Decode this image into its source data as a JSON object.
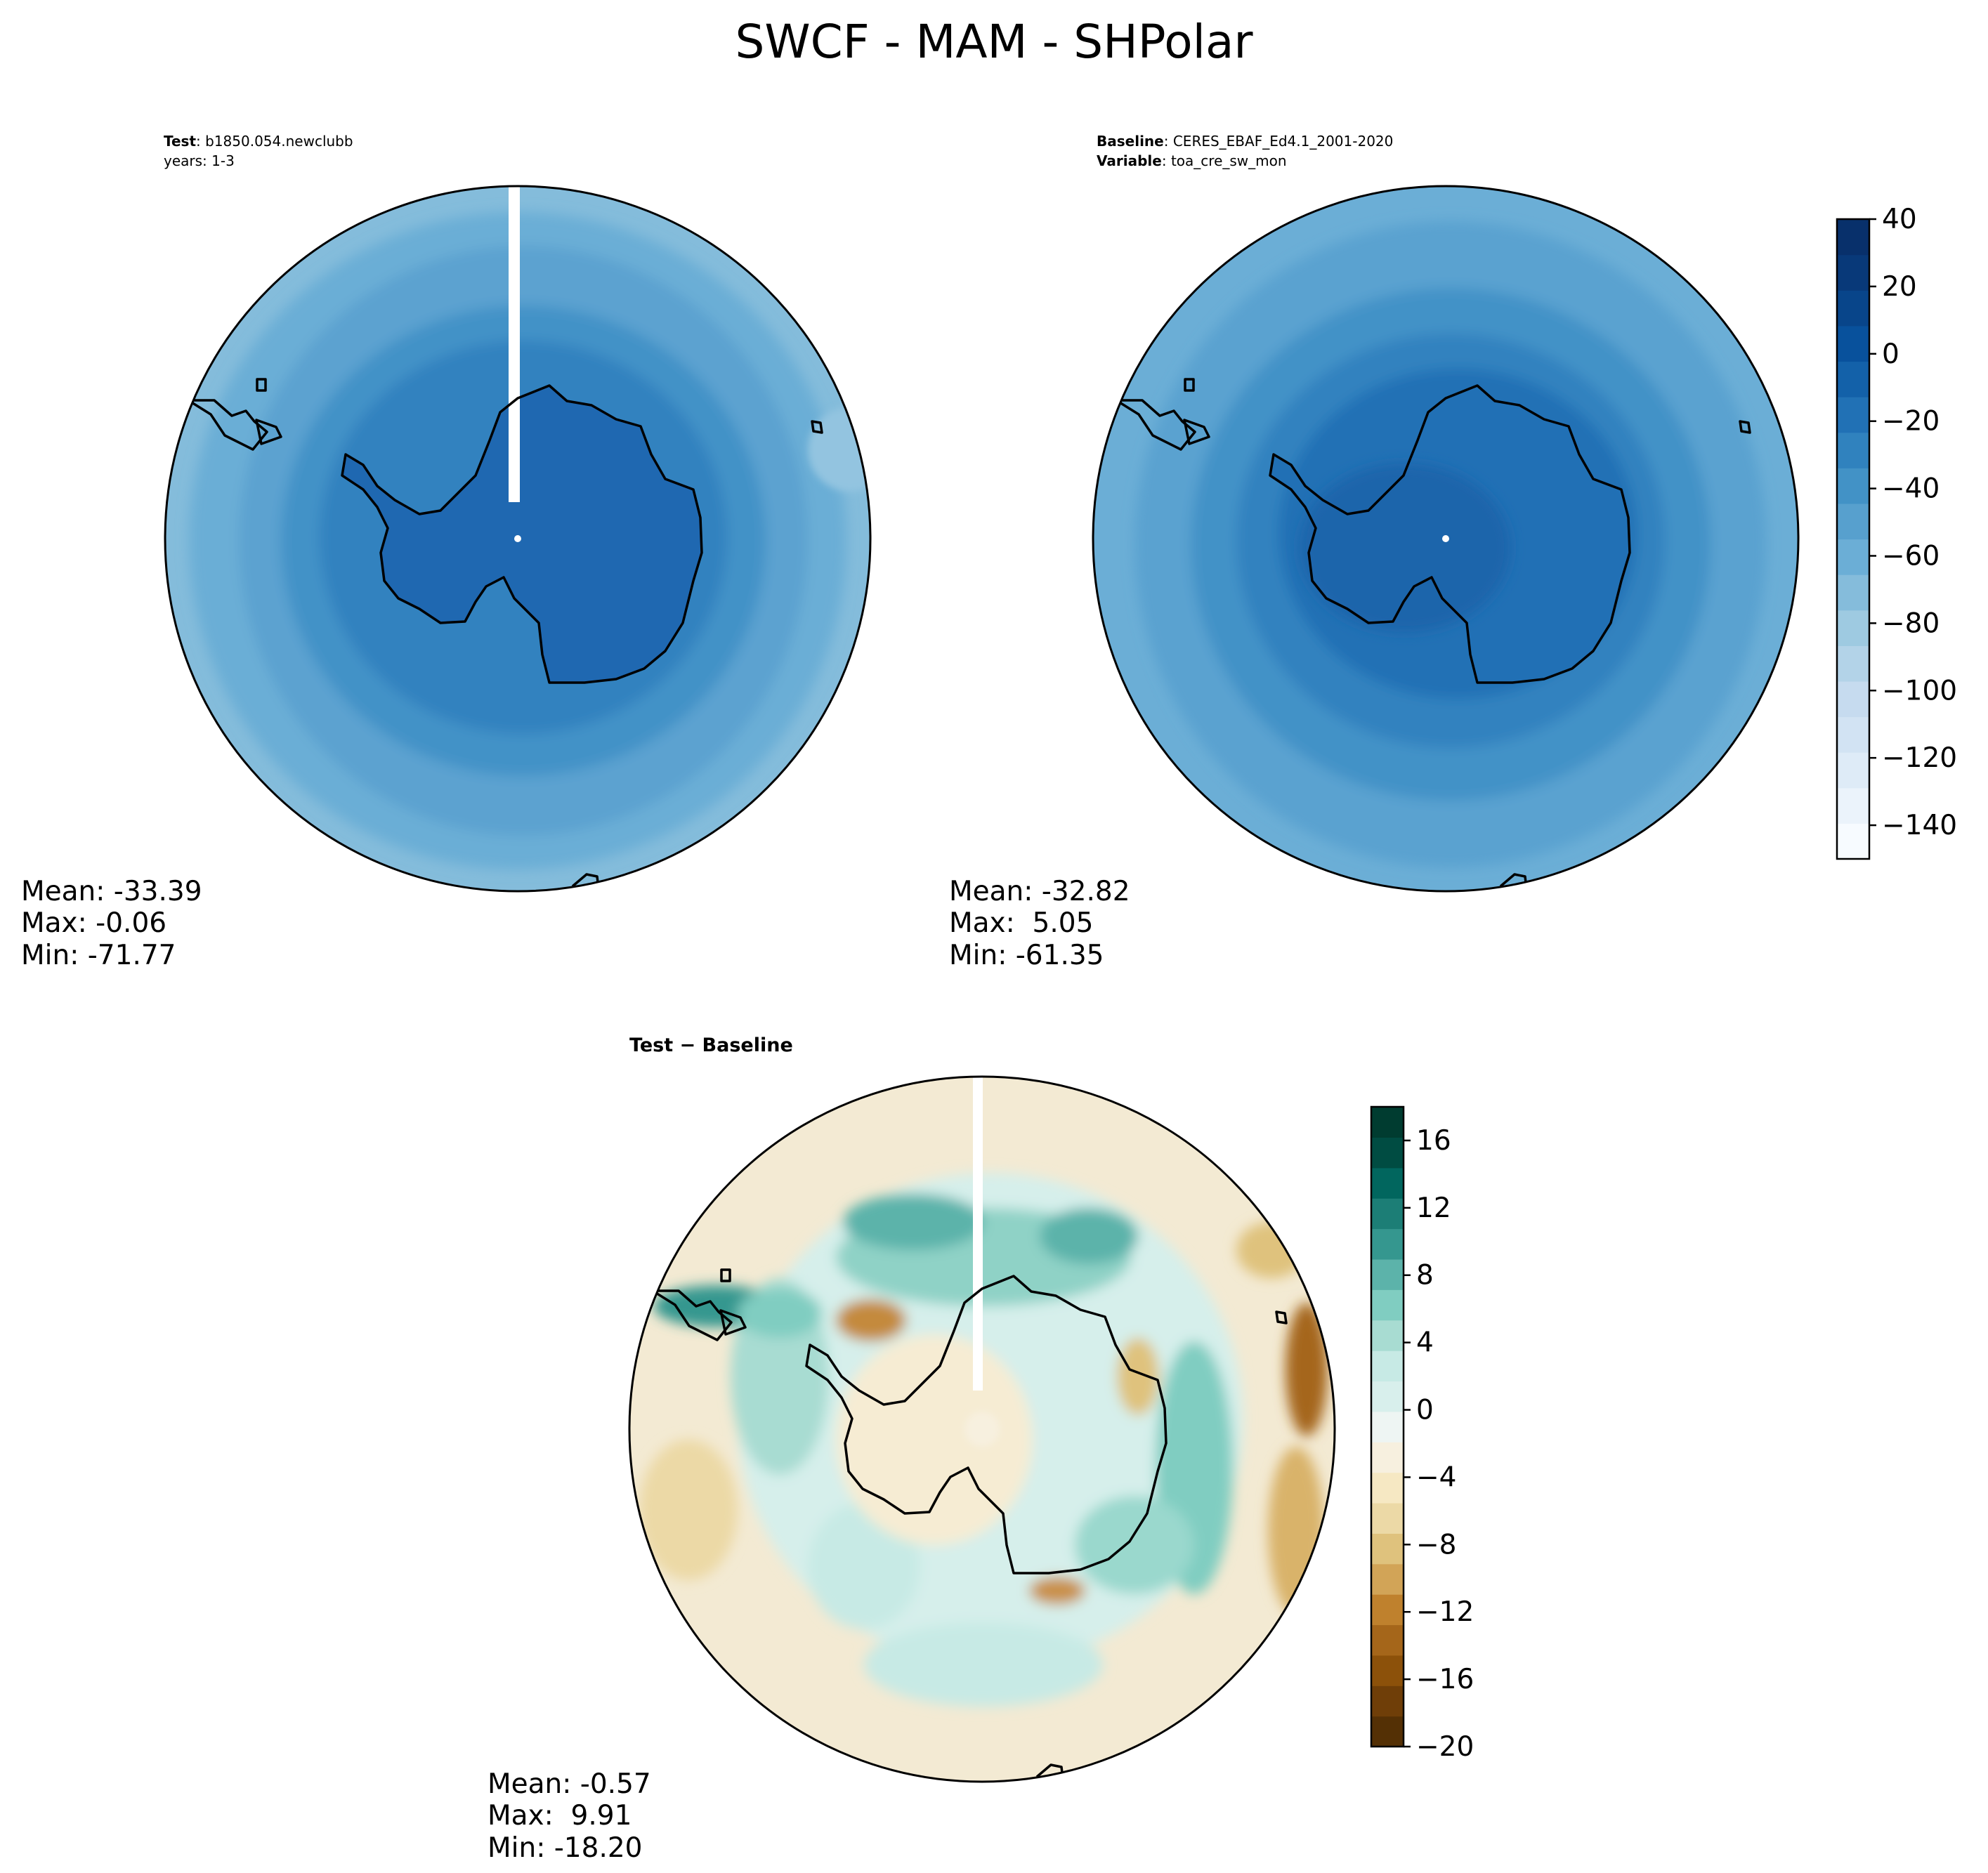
{
  "title": "SWCF - MAM - SHPolar",
  "chart_data": [
    {
      "type": "heatmap",
      "projection": "south-polar-stereographic",
      "header": [
        {
          "label": "Test",
          "value": "b1850.054.newclubb"
        },
        {
          "label": "",
          "value": "years: 1-3"
        }
      ],
      "stats": [
        "Mean: -33.39",
        "Max: -0.06",
        "Min: -71.77"
      ]
    },
    {
      "type": "heatmap",
      "projection": "south-polar-stereographic",
      "header": [
        {
          "label": "Baseline",
          "value": "CERES_EBAF_Ed4.1_2001-2020"
        },
        {
          "label": "Variable",
          "value": "toa_cre_sw_mon"
        }
      ],
      "stats": [
        "Mean: -32.82",
        "Max:  5.05",
        "Min: -61.35"
      ],
      "colorbar": {
        "range": [
          -150,
          40
        ],
        "ticks": [
          -140,
          -120,
          -100,
          -80,
          -60,
          -40,
          -20,
          0,
          20,
          40
        ],
        "tick_labels": [
          "−140",
          "−120",
          "−100",
          "−80",
          "−60",
          "−40",
          "−20",
          "0",
          "20",
          "40"
        ],
        "colors": [
          "#f7fbff",
          "#ebf3fb",
          "#deebf7",
          "#d2e3f3",
          "#c6dbef",
          "#b3d3e8",
          "#9ecae1",
          "#85bcdb",
          "#6baed6",
          "#57a0ce",
          "#4292c6",
          "#3082be",
          "#2171b5",
          "#1361a9",
          "#08519c",
          "#08458a",
          "#083979",
          "#08306b"
        ]
      }
    },
    {
      "type": "heatmap",
      "projection": "south-polar-stereographic",
      "header": [
        {
          "label": "Test − Baseline",
          "value": ""
        }
      ],
      "stats": [
        "Mean: -0.57",
        "Max:  9.91",
        "Min: -18.20"
      ],
      "colorbar": {
        "range": [
          -20,
          18
        ],
        "ticks": [
          -20,
          -16,
          -12,
          -8,
          -4,
          0,
          4,
          8,
          12,
          16
        ],
        "tick_labels": [
          "−20",
          "−16",
          "−12",
          "−8",
          "−4",
          "0",
          "4",
          "8",
          "12",
          "16"
        ],
        "colors": [
          "#543005",
          "#6f3e08",
          "#8c510a",
          "#a5661a",
          "#bf812d",
          "#d2a457",
          "#dfc27d",
          "#ecd9a6",
          "#f6e8c3",
          "#f7f0df",
          "#eef5f3",
          "#d8efec",
          "#c7eae5",
          "#a8dcd2",
          "#80cdc1",
          "#5cb3aa",
          "#35978f",
          "#1c7e76",
          "#01665e",
          "#004c42",
          "#003c30"
        ]
      }
    }
  ]
}
